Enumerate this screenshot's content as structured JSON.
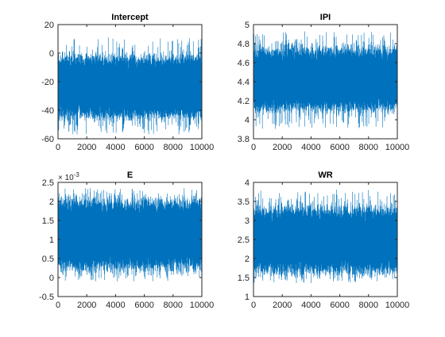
{
  "figure": {
    "background": "#ffffff",
    "series_color": "#0072bd",
    "axis_color": "#262626"
  },
  "chart_data": [
    {
      "type": "line",
      "title": "Intercept",
      "xlabel": "",
      "ylabel": "",
      "xlim": [
        0,
        10000
      ],
      "ylim": [
        -60,
        20
      ],
      "xticks": [
        "0",
        "2000",
        "4000",
        "6000",
        "8000",
        "10000"
      ],
      "yticks": [
        "-60",
        "-40",
        "-20",
        "0",
        "20"
      ],
      "grid": false,
      "trace": {
        "n_draws": 10000,
        "center": -24,
        "typical_low": -42,
        "typical_high": -5,
        "min": -57,
        "max": 11,
        "spread": 9
      }
    },
    {
      "type": "line",
      "title": "IPI",
      "xlabel": "",
      "ylabel": "",
      "xlim": [
        0,
        10000
      ],
      "ylim": [
        3.8,
        5
      ],
      "xticks": [
        "0",
        "2000",
        "4000",
        "6000",
        "8000",
        "10000"
      ],
      "yticks": [
        "3.8",
        "4",
        "4.2",
        "4.4",
        "4.6",
        "4.8",
        "5"
      ],
      "grid": false,
      "trace": {
        "n_draws": 10000,
        "center": 4.42,
        "typical_low": 4.15,
        "typical_high": 4.7,
        "min": 3.9,
        "max": 4.93,
        "spread": 0.135
      }
    },
    {
      "type": "line",
      "title": "E",
      "xlabel": "",
      "ylabel": "",
      "y_exponent": "× 10",
      "y_exponent_power": "-3",
      "xlim": [
        0,
        10000
      ],
      "ylim": [
        -0.5,
        2.5
      ],
      "xticks": [
        "0",
        "2000",
        "4000",
        "6000",
        "8000",
        "10000"
      ],
      "yticks": [
        "-0.5",
        "0",
        "0.5",
        "1",
        "1.5",
        "2",
        "2.5"
      ],
      "grid": false,
      "trace": {
        "n_draws": 10000,
        "center": 1.1,
        "typical_low": 0.35,
        "typical_high": 1.9,
        "min": -0.1,
        "max": 2.35,
        "spread": 0.38
      }
    },
    {
      "type": "line",
      "title": "WR",
      "xlabel": "",
      "ylabel": "",
      "xlim": [
        0,
        10000
      ],
      "ylim": [
        1,
        4
      ],
      "xticks": [
        "0",
        "2000",
        "4000",
        "6000",
        "8000",
        "10000"
      ],
      "yticks": [
        "1",
        "1.5",
        "2",
        "2.5",
        "3",
        "3.5",
        "4"
      ],
      "grid": false,
      "trace": {
        "n_draws": 10000,
        "center": 2.45,
        "typical_low": 1.75,
        "typical_high": 3.2,
        "min": 1.35,
        "max": 3.85,
        "spread": 0.36
      }
    }
  ]
}
